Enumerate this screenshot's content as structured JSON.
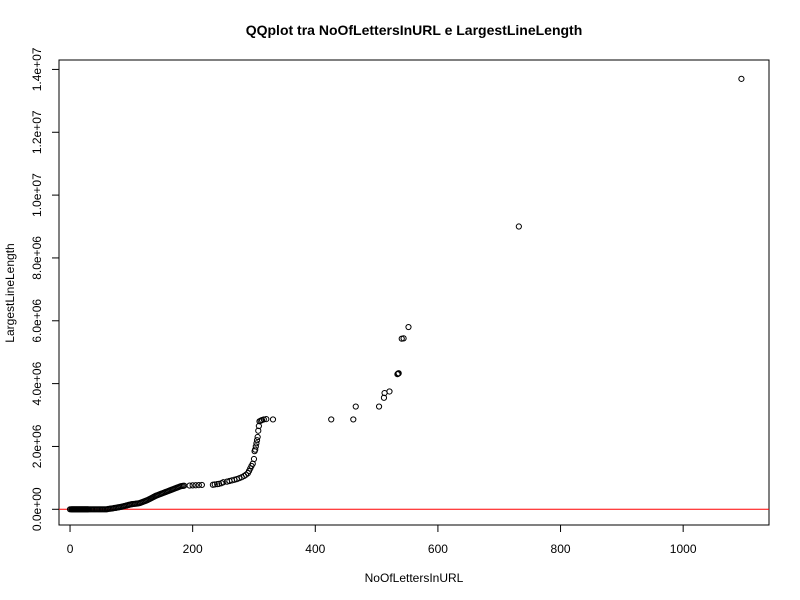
{
  "chart_data": {
    "type": "scatter",
    "title": "QQplot tra NoOfLettersInURL e LargestLineLength",
    "xlabel": "NoOfLettersInURL",
    "ylabel": "LargestLineLength",
    "xlim": [
      -18,
      1140
    ],
    "ylim": [
      -500000,
      14300000
    ],
    "xticks": [
      0,
      200,
      400,
      600,
      800,
      1000
    ],
    "xtick_labels": [
      "0",
      "200",
      "400",
      "600",
      "800",
      "1000"
    ],
    "yticks": [
      0,
      2000000,
      4000000,
      6000000,
      8000000,
      10000000,
      12000000,
      14000000
    ],
    "ytick_labels": [
      "0.0e+00",
      "2.0e+06",
      "4.0e+06",
      "6.0e+06",
      "8.0e+06",
      "1.0e+07",
      "1.2e+07",
      "1.4e+07"
    ],
    "reference_line": {
      "y": 0,
      "color": "#ff0000"
    },
    "marker": "open-circle",
    "grid": false,
    "colors": {
      "points": "#000000",
      "reference_line": "#ff0000",
      "background": "#ffffff"
    },
    "points": [
      [
        0,
        0
      ],
      [
        2,
        0
      ],
      [
        3,
        0
      ],
      [
        4,
        0
      ],
      [
        5,
        0
      ],
      [
        6,
        0
      ],
      [
        7,
        0
      ],
      [
        8,
        0
      ],
      [
        9,
        0
      ],
      [
        10,
        0
      ],
      [
        11,
        0
      ],
      [
        12,
        0
      ],
      [
        13,
        0
      ],
      [
        14,
        0
      ],
      [
        15,
        0
      ],
      [
        16,
        0
      ],
      [
        17,
        0
      ],
      [
        18,
        0
      ],
      [
        19,
        0
      ],
      [
        20,
        0
      ],
      [
        21,
        0
      ],
      [
        22,
        0
      ],
      [
        23,
        0
      ],
      [
        24,
        0
      ],
      [
        25,
        0
      ],
      [
        26,
        0
      ],
      [
        27,
        0
      ],
      [
        28,
        0
      ],
      [
        29,
        0
      ],
      [
        30,
        0
      ],
      [
        32,
        0
      ],
      [
        34,
        0
      ],
      [
        36,
        0
      ],
      [
        38,
        0
      ],
      [
        40,
        0
      ],
      [
        42,
        0
      ],
      [
        44,
        0
      ],
      [
        46,
        0
      ],
      [
        48,
        0
      ],
      [
        50,
        0
      ],
      [
        52,
        0
      ],
      [
        54,
        0
      ],
      [
        56,
        0
      ],
      [
        58,
        0
      ],
      [
        60,
        0
      ],
      [
        62,
        10000
      ],
      [
        64,
        15000
      ],
      [
        66,
        20000
      ],
      [
        68,
        25000
      ],
      [
        70,
        30000
      ],
      [
        72,
        40000
      ],
      [
        74,
        45000
      ],
      [
        76,
        50000
      ],
      [
        78,
        60000
      ],
      [
        80,
        65000
      ],
      [
        82,
        75000
      ],
      [
        84,
        80000
      ],
      [
        86,
        90000
      ],
      [
        88,
        100000
      ],
      [
        90,
        110000
      ],
      [
        92,
        120000
      ],
      [
        94,
        130000
      ],
      [
        96,
        140000
      ],
      [
        98,
        150000
      ],
      [
        100,
        160000
      ],
      [
        102,
        165000
      ],
      [
        104,
        170000
      ],
      [
        106,
        175000
      ],
      [
        108,
        180000
      ],
      [
        110,
        185000
      ],
      [
        112,
        190000
      ],
      [
        114,
        200000
      ],
      [
        116,
        215000
      ],
      [
        118,
        230000
      ],
      [
        120,
        245000
      ],
      [
        122,
        260000
      ],
      [
        124,
        275000
      ],
      [
        126,
        290000
      ],
      [
        128,
        310000
      ],
      [
        130,
        330000
      ],
      [
        132,
        350000
      ],
      [
        134,
        370000
      ],
      [
        136,
        390000
      ],
      [
        138,
        410000
      ],
      [
        140,
        430000
      ],
      [
        142,
        445000
      ],
      [
        144,
        460000
      ],
      [
        146,
        475000
      ],
      [
        148,
        490000
      ],
      [
        150,
        505000
      ],
      [
        152,
        520000
      ],
      [
        154,
        535000
      ],
      [
        156,
        550000
      ],
      [
        158,
        565000
      ],
      [
        160,
        580000
      ],
      [
        162,
        595000
      ],
      [
        164,
        610000
      ],
      [
        166,
        625000
      ],
      [
        168,
        640000
      ],
      [
        170,
        655000
      ],
      [
        172,
        670000
      ],
      [
        174,
        685000
      ],
      [
        176,
        700000
      ],
      [
        178,
        715000
      ],
      [
        180,
        730000
      ],
      [
        182,
        740000
      ],
      [
        184,
        745000
      ],
      [
        186,
        750000
      ],
      [
        195,
        755000
      ],
      [
        200,
        760000
      ],
      [
        205,
        765000
      ],
      [
        210,
        770000
      ],
      [
        215,
        775000
      ],
      [
        233,
        780000
      ],
      [
        236,
        790000
      ],
      [
        240,
        800000
      ],
      [
        243,
        810000
      ],
      [
        247,
        830000
      ],
      [
        250,
        860000
      ],
      [
        256,
        880000
      ],
      [
        260,
        900000
      ],
      [
        264,
        920000
      ],
      [
        268,
        940000
      ],
      [
        272,
        960000
      ],
      [
        276,
        990000
      ],
      [
        280,
        1020000
      ],
      [
        284,
        1060000
      ],
      [
        287,
        1100000
      ],
      [
        290,
        1150000
      ],
      [
        292,
        1220000
      ],
      [
        294,
        1300000
      ],
      [
        296,
        1380000
      ],
      [
        298,
        1450000
      ],
      [
        300,
        1600000
      ],
      [
        301,
        1850000
      ],
      [
        302,
        1900000
      ],
      [
        303,
        2000000
      ],
      [
        304,
        2100000
      ],
      [
        305,
        2200000
      ],
      [
        306,
        2300000
      ],
      [
        307,
        2500000
      ],
      [
        308,
        2650000
      ],
      [
        309,
        2800000
      ],
      [
        311,
        2820000
      ],
      [
        313,
        2840000
      ],
      [
        316,
        2860000
      ],
      [
        320,
        2870000
      ],
      [
        331,
        2860000
      ],
      [
        426,
        2860000
      ],
      [
        462,
        2860000
      ],
      [
        466,
        3270000
      ],
      [
        504,
        3270000
      ],
      [
        512,
        3550000
      ],
      [
        513,
        3700000
      ],
      [
        521,
        3750000
      ],
      [
        534,
        4300000
      ],
      [
        535,
        4320000
      ],
      [
        536,
        4330000
      ],
      [
        541,
        5430000
      ],
      [
        544,
        5440000
      ],
      [
        552,
        5800000
      ],
      [
        732,
        9000000
      ],
      [
        1095,
        13700000
      ]
    ]
  }
}
